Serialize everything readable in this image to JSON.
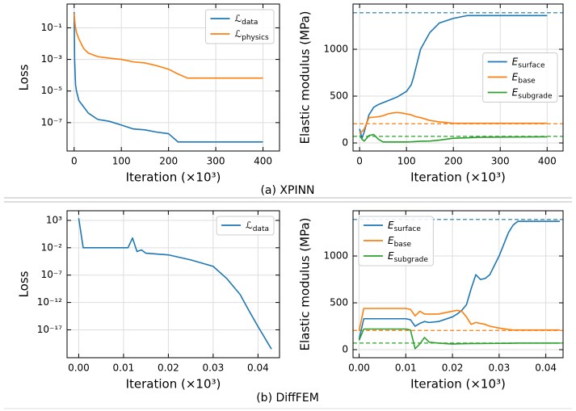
{
  "chart_data": [
    {
      "type": "line",
      "ylabel": "Loss",
      "xlabel": "Iteration (×10³)",
      "log_y": true,
      "grid": true,
      "legend": "upper right",
      "xlim": [
        -15,
        435
      ],
      "ylim": [
        1.6e-09,
        3.2
      ],
      "xticks": [
        0,
        100,
        200,
        300,
        400
      ],
      "yticks": [
        {
          "value": 0.1,
          "label": "10⁻¹"
        },
        {
          "value": 0.001,
          "label": "10⁻³"
        },
        {
          "value": 1e-05,
          "label": "10⁻⁵"
        },
        {
          "value": 1e-07,
          "label": "10⁻⁷"
        }
      ],
      "x": [
        0,
        1,
        3,
        5,
        10,
        20,
        30,
        50,
        75,
        100,
        125,
        150,
        175,
        200,
        220,
        240,
        300,
        400
      ],
      "series": [
        {
          "name": "ℒdata",
          "color": "#1f77b4",
          "values": [
            1,
            0.001,
            2.5e-05,
            1e-05,
            2.5e-06,
            1e-06,
            4e-07,
            1.6e-07,
            1.2e-07,
            7e-08,
            4e-08,
            3.5e-08,
            2.5e-08,
            2e-08,
            6e-09,
            6e-09,
            6e-09,
            6e-09
          ]
        },
        {
          "name": "ℒphysics",
          "color": "#ff7f0e",
          "values": [
            0.8,
            0.3,
            0.1,
            0.05,
            0.02,
            0.005,
            0.0025,
            0.0015,
            0.0012,
            0.001,
            0.0007,
            0.0006,
            0.0004,
            0.00024,
            0.00012,
            6.6e-05,
            6.6e-05,
            6.6e-05
          ]
        }
      ]
    },
    {
      "type": "line",
      "ylabel": "Elastic modulus (MPa)",
      "xlabel": "Iteration (×10³)",
      "grid": true,
      "legend": "center right",
      "xlim": [
        -14,
        434
      ],
      "ylim": [
        -86,
        1483
      ],
      "xticks": [
        0,
        100,
        200,
        300,
        400
      ],
      "yticks": [
        0,
        500,
        1000
      ],
      "x": [
        0,
        5,
        10,
        20,
        30,
        40,
        50,
        60,
        70,
        80,
        90,
        100,
        110,
        115,
        120,
        130,
        150,
        170,
        200,
        230,
        250,
        300,
        400
      ],
      "series": [
        {
          "name": "Esurface",
          "color": "#1f77b4",
          "values": [
            150,
            50,
            120,
            300,
            380,
            410,
            430,
            450,
            470,
            490,
            520,
            550,
            620,
            700,
            800,
            1000,
            1180,
            1280,
            1330,
            1360,
            1360,
            1360,
            1360
          ]
        },
        {
          "name": "Ebase",
          "color": "#ff7f0e",
          "values": [
            100,
            120,
            150,
            270,
            275,
            280,
            290,
            310,
            320,
            325,
            320,
            310,
            300,
            290,
            280,
            270,
            240,
            225,
            210,
            210,
            210,
            210,
            210
          ]
        },
        {
          "name": "Esubgrade",
          "color": "#2ca02c",
          "values": [
            80,
            40,
            20,
            80,
            90,
            40,
            10,
            10,
            10,
            10,
            10,
            10,
            12,
            14,
            15,
            18,
            20,
            30,
            50,
            55,
            60,
            62,
            65
          ]
        }
      ],
      "hlines": [
        {
          "value": 1390,
          "color": "#1f77b4"
        },
        {
          "value": 205,
          "color": "#ff7f0e"
        },
        {
          "value": 70,
          "color": "#2ca02c"
        }
      ]
    },
    {
      "type": "line",
      "ylabel": "Loss",
      "xlabel": "Iteration (×10³)",
      "log_y": true,
      "grid": true,
      "legend": "upper right",
      "xlim": [
        -0.0026,
        0.0448
      ],
      "ylim": [
        8e-23,
        58000
      ],
      "xticks": [
        {
          "value": 0,
          "label": "0.00"
        },
        {
          "value": 0.01,
          "label": "0.01"
        },
        {
          "value": 0.02,
          "label": "0.02"
        },
        {
          "value": 0.03,
          "label": "0.03"
        },
        {
          "value": 0.04,
          "label": "0.04"
        }
      ],
      "yticks": [
        {
          "value": 1000,
          "label": "10³"
        },
        {
          "value": 0.01,
          "label": "10⁻²"
        },
        {
          "value": 1e-07,
          "label": "10⁻⁷"
        },
        {
          "value": 1e-12,
          "label": "10⁻¹²"
        },
        {
          "value": 1e-17,
          "label": "10⁻¹⁷"
        }
      ],
      "x": [
        0,
        0.001,
        0.011,
        0.012,
        0.013,
        0.014,
        0.015,
        0.02,
        0.025,
        0.03,
        0.033,
        0.036,
        0.038,
        0.04,
        0.043
      ],
      "series": [
        {
          "name": "ℒdata",
          "color": "#1f77b4",
          "values": [
            2500,
            0.01,
            0.01,
            0.6,
            0.002,
            0.004,
            0.001,
            0.0005,
            6e-05,
            4e-06,
            2.5e-08,
            3e-11,
            3e-14,
            4e-17,
            3e-21
          ]
        }
      ]
    },
    {
      "type": "line",
      "ylabel": "Elastic modulus (MPa)",
      "xlabel": "Iteration (×10³)",
      "grid": true,
      "legend": "upper left",
      "xlim": [
        -0.0013,
        0.0437
      ],
      "ylim": [
        -86,
        1483
      ],
      "xticks": [
        {
          "value": 0,
          "label": "0.00"
        },
        {
          "value": 0.01,
          "label": "0.01"
        },
        {
          "value": 0.02,
          "label": "0.02"
        },
        {
          "value": 0.03,
          "label": "0.03"
        },
        {
          "value": 0.04,
          "label": "0.04"
        }
      ],
      "yticks": [
        0,
        500,
        1000
      ],
      "x": [
        0,
        0.001,
        0.01,
        0.011,
        0.012,
        0.013,
        0.014,
        0.015,
        0.017,
        0.02,
        0.021,
        0.022,
        0.023,
        0.024,
        0.025,
        0.026,
        0.027,
        0.028,
        0.03,
        0.032,
        0.033,
        0.034,
        0.043
      ],
      "series": [
        {
          "name": "Esurface",
          "color": "#1f77b4",
          "values": [
            110,
            330,
            330,
            320,
            250,
            280,
            300,
            290,
            300,
            350,
            380,
            420,
            480,
            650,
            800,
            750,
            760,
            800,
            1000,
            1250,
            1330,
            1370,
            1370
          ]
        },
        {
          "name": "Ebase",
          "color": "#ff7f0e",
          "values": [
            200,
            440,
            440,
            430,
            360,
            410,
            380,
            380,
            380,
            410,
            420,
            410,
            350,
            270,
            290,
            280,
            270,
            250,
            230,
            215,
            210,
            210,
            210
          ]
        },
        {
          "name": "Esubgrade",
          "color": "#2ca02c",
          "values": [
            100,
            220,
            220,
            210,
            10,
            60,
            130,
            80,
            70,
            60,
            62,
            63,
            64,
            65,
            65,
            65,
            66,
            66,
            67,
            68,
            69,
            70,
            70
          ]
        }
      ],
      "hlines": [
        {
          "value": 1390,
          "color": "#1f77b4"
        },
        {
          "value": 205,
          "color": "#ff7f0e"
        },
        {
          "value": 70,
          "color": "#2ca02c"
        }
      ]
    }
  ],
  "captions": [
    "(a) XPINN",
    "(b) DiffFEM"
  ]
}
